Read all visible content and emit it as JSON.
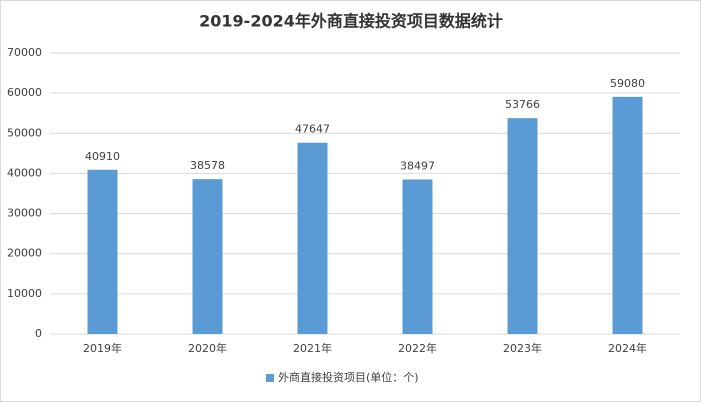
{
  "chart_data": {
    "type": "bar",
    "title": "2019-2024年外商直接投资项目数据统计",
    "categories": [
      "2019年",
      "2020年",
      "2021年",
      "2022年",
      "2023年",
      "2024年"
    ],
    "series": [
      {
        "name": "外商直接投资项目(单位：个)",
        "color": "#5b9bd5",
        "values": [
          40910,
          38578,
          47647,
          38497,
          53766,
          59080
        ]
      }
    ],
    "ylim": [
      0,
      70000
    ],
    "yticks": [
      0,
      10000,
      20000,
      30000,
      40000,
      50000,
      60000,
      70000
    ],
    "grid": true,
    "legend": "bottom"
  }
}
